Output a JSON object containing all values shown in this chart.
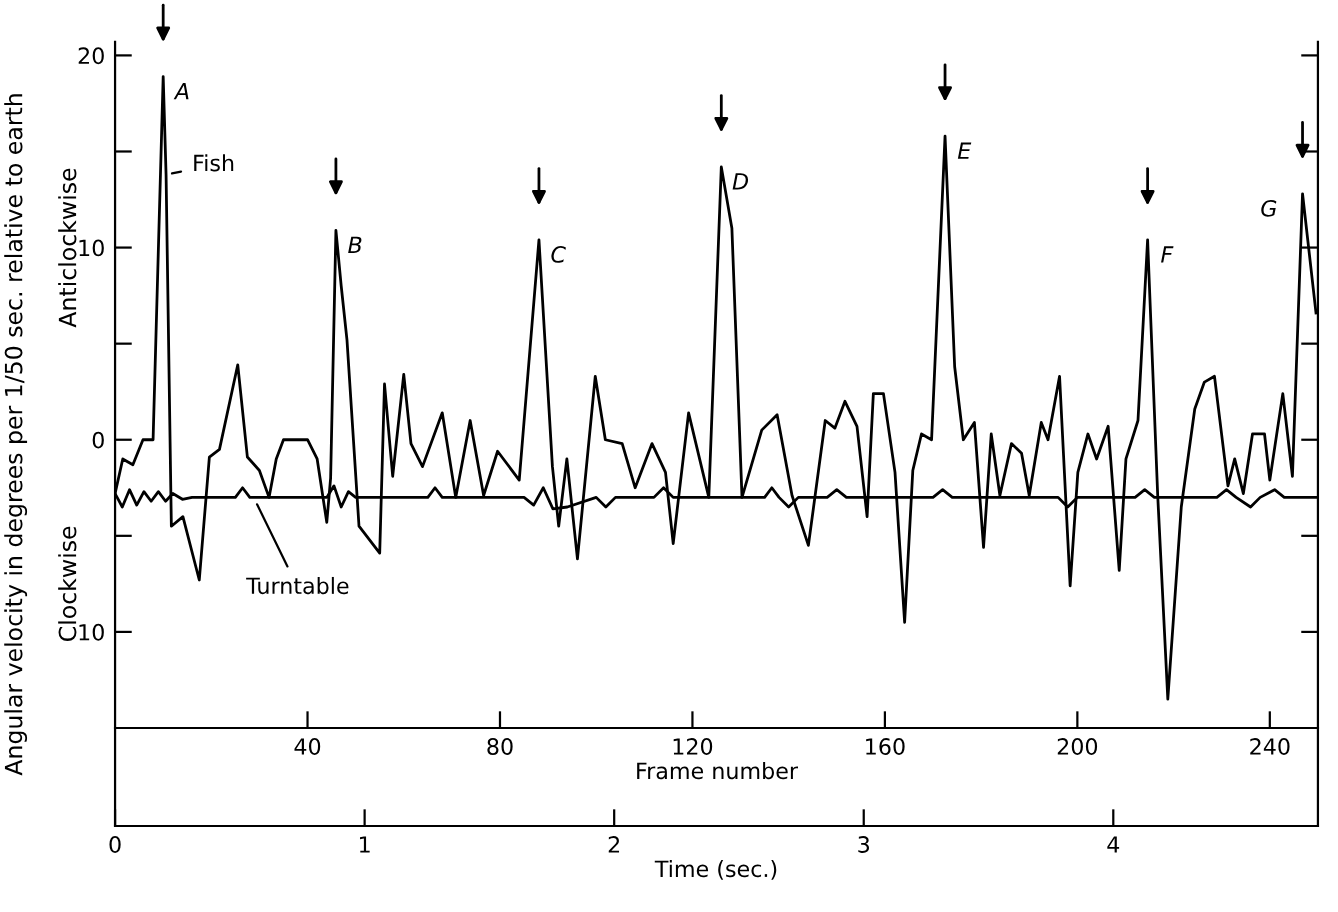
{
  "chart_data": {
    "type": "line",
    "xlabel": "Frame number",
    "xlim": [
      0,
      250
    ],
    "xticks": [
      40,
      80,
      120,
      160,
      200,
      240
    ],
    "x2label": "Time (sec.)",
    "x2lim": [
      0,
      4.82
    ],
    "x2ticks": [
      0,
      1,
      2,
      3,
      4
    ],
    "ylabel": "Angular velocity in degrees per 1/50 sec. relative to earth",
    "ylim": [
      -20.1,
      20.7
    ],
    "yticks": [
      {
        "value": -10,
        "label": "10"
      },
      {
        "value": -5,
        "label": null
      },
      0,
      {
        "value": 5,
        "label": null
      },
      10,
      {
        "value": 15,
        "label": null
      },
      20
    ],
    "series": [
      {
        "name": "Fish",
        "color": "#000000",
        "x": [
          0,
          1.6,
          3.7,
          5.8,
          7.9,
          10,
          10.6,
          11.7,
          14.1,
          17.5,
          19.6,
          21.7,
          25.5,
          27.5,
          30,
          32,
          33.5,
          35,
          40,
          42,
          44,
          44.8,
          45.9,
          47,
          48.2,
          50.7,
          55,
          56,
          57.7,
          60,
          61.5,
          63.9,
          68,
          70.8,
          73.8,
          76.6,
          79.5,
          84,
          88.1,
          90.9,
          92.2,
          93.9,
          96.1,
          99.8,
          101.9,
          105.4,
          108.1,
          111.6,
          114.4,
          116,
          119.2,
          123.4,
          126,
          128.2,
          130.3,
          134.4,
          137.6,
          140.7,
          144.1,
          147.6,
          149.6,
          151.7,
          154.2,
          156.3,
          157.6,
          159.7,
          162.1,
          164.1,
          165.8,
          167.6,
          169.7,
          172.5,
          174.5,
          176.3,
          178.6,
          180.5,
          182.1,
          183.9,
          186.3,
          188.4,
          190,
          192.5,
          193.9,
          196.3,
          198.5,
          200.1,
          202.2,
          204,
          206.4,
          208.7,
          210.1,
          212.6,
          214.6,
          216.7,
          218.8,
          221.6,
          224.4,
          226.4,
          228.5,
          231.3,
          232.7,
          234.5,
          236.4,
          238.9,
          240,
          242.7,
          244.7,
          246.8,
          249.6
        ],
        "values": [
          -2.8,
          -1.0,
          -1.3,
          0,
          0,
          18.9,
          13.8,
          -4.5,
          -4.0,
          -7.3,
          -0.9,
          -0.5,
          3.9,
          -0.9,
          -1.6,
          -3,
          -1,
          0,
          0,
          -1,
          -4.3,
          -2,
          10.9,
          8,
          5.2,
          -4.5,
          -5.9,
          2.9,
          -1.9,
          3.4,
          -0.2,
          -1.4,
          1.4,
          -3,
          1.0,
          -2.9,
          -0.6,
          -2.1,
          10.4,
          -1.4,
          -4.5,
          -1,
          -6.2,
          3.3,
          0,
          -0.2,
          -2.5,
          -0.2,
          -1.7,
          -5.4,
          1.4,
          -3,
          14.2,
          11.0,
          -3,
          0.5,
          1.3,
          -2.9,
          -5.5,
          1.0,
          0.6,
          2.0,
          0.7,
          -4.0,
          2.4,
          2.4,
          -1.7,
          -9.5,
          -1.6,
          0.3,
          0,
          15.8,
          3.8,
          0,
          0.9,
          -5.6,
          0.3,
          -2.9,
          -0.2,
          -0.7,
          -2.9,
          0.9,
          0,
          3.3,
          -7.6,
          -1.7,
          0.3,
          -1.0,
          0.7,
          -6.8,
          -1.0,
          1.0,
          10.4,
          -2.9,
          -13.5,
          -3.5,
          1.6,
          3.0,
          3.3,
          -2.4,
          -1,
          -2.8,
          0.3,
          0.3,
          -2.1,
          2.4,
          -1.9,
          12.8,
          6.6
        ]
      },
      {
        "name": "Turntable",
        "color": "#000000",
        "x": [
          0,
          1.5,
          3,
          4.5,
          6,
          7.5,
          9,
          10.5,
          12,
          14,
          16,
          25,
          26.5,
          28,
          44,
          45.5,
          47,
          48.5,
          50,
          65,
          66.5,
          68,
          85,
          87,
          89,
          91,
          94,
          100,
          102,
          104,
          112,
          114,
          116,
          135,
          136.5,
          138,
          140,
          142,
          148,
          150,
          152,
          170,
          172,
          174,
          196,
          198,
          200,
          212,
          214,
          216,
          229,
          231,
          233,
          236,
          238,
          241,
          243,
          250
        ],
        "values": [
          -2.8,
          -3.5,
          -2.6,
          -3.4,
          -2.7,
          -3.2,
          -2.7,
          -3.2,
          -2.8,
          -3.1,
          -3,
          -3,
          -2.5,
          -3,
          -3,
          -2.4,
          -3.5,
          -2.7,
          -3,
          -3,
          -2.5,
          -3,
          -3,
          -3.4,
          -2.5,
          -3.6,
          -3.5,
          -3,
          -3.5,
          -3,
          -3,
          -2.5,
          -3,
          -3,
          -2.5,
          -3,
          -3.5,
          -3,
          -3,
          -2.6,
          -3,
          -3,
          -2.6,
          -3,
          -3,
          -3.5,
          -3,
          -3,
          -2.6,
          -3,
          -3,
          -2.6,
          -3,
          -3.5,
          -3,
          -2.6,
          -3,
          -3
        ]
      }
    ],
    "annotations": [
      {
        "text": "A",
        "x": 10,
        "y": 18.9
      },
      {
        "text": "B",
        "x": 45.9,
        "y": 10.9
      },
      {
        "text": "C",
        "x": 88.1,
        "y": 10.4
      },
      {
        "text": "D",
        "x": 126,
        "y": 14.2
      },
      {
        "text": "E",
        "x": 172.5,
        "y": 15.8
      },
      {
        "text": "F",
        "x": 214.6,
        "y": 10.4
      },
      {
        "text": "G",
        "x": 246.8,
        "y": 12.8
      },
      "Anticlockwise",
      "Clockwise"
    ]
  }
}
